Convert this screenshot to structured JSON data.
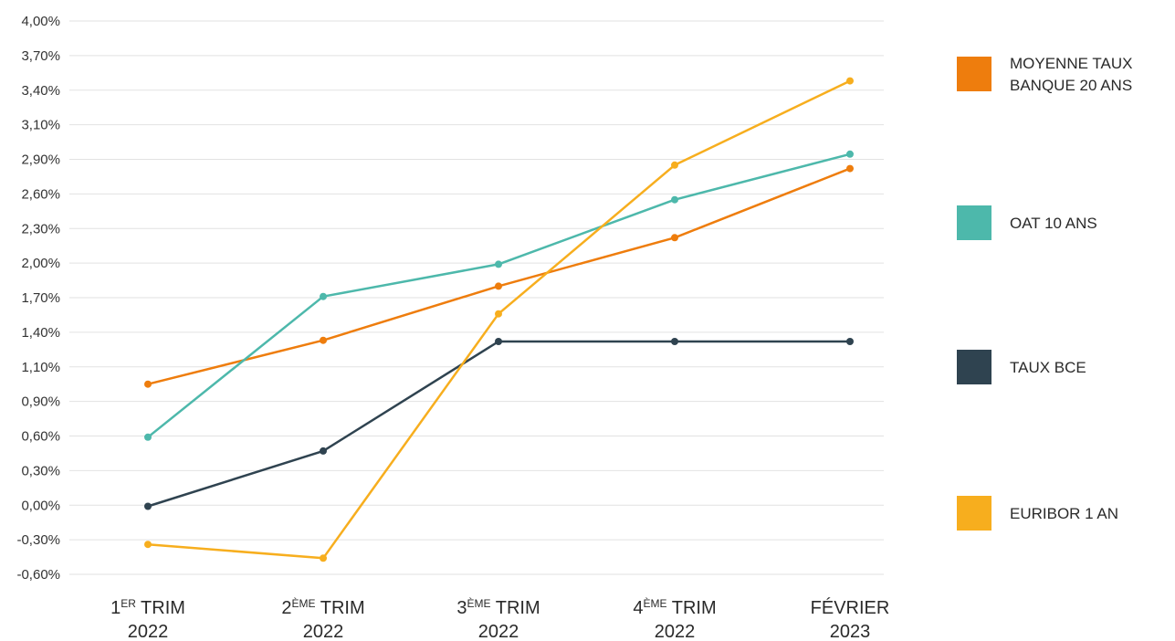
{
  "chart_data": {
    "type": "line",
    "categories": [
      {
        "num": "1",
        "sup": "ER",
        "word": "TRIM",
        "year": "2022"
      },
      {
        "num": "2",
        "sup": "ÈME",
        "word": "TRIM",
        "year": "2022"
      },
      {
        "num": "3",
        "sup": "ÈME",
        "word": "TRIM",
        "year": "2022"
      },
      {
        "num": "4",
        "sup": "ÈME",
        "word": "TRIM",
        "year": "2022"
      },
      {
        "num": "",
        "sup": "",
        "word": "FÉVRIER",
        "year": "2023"
      }
    ],
    "y_ticks": [
      {
        "value": -0.6,
        "label": "-0,60%"
      },
      {
        "value": -0.3,
        "label": "-0,30%"
      },
      {
        "value": 0.0,
        "label": "0,00%"
      },
      {
        "value": 0.3,
        "label": "0,30%"
      },
      {
        "value": 0.6,
        "label": "0,60%"
      },
      {
        "value": 0.9,
        "label": "0,90%"
      },
      {
        "value": 1.1,
        "label": "1,10%"
      },
      {
        "value": 1.4,
        "label": "1,40%"
      },
      {
        "value": 1.7,
        "label": "1,70%"
      },
      {
        "value": 2.0,
        "label": "2,00%"
      },
      {
        "value": 2.3,
        "label": "2,30%"
      },
      {
        "value": 2.6,
        "label": "2,60%"
      },
      {
        "value": 2.9,
        "label": "2,90%"
      },
      {
        "value": 3.1,
        "label": "3,10%"
      },
      {
        "value": 3.4,
        "label": "3,40%"
      },
      {
        "value": 3.7,
        "label": "3,70%"
      },
      {
        "value": 4.0,
        "label": "4,00%"
      }
    ],
    "ylim": [
      -0.6,
      4.0
    ],
    "grid": true,
    "legend_position": "right",
    "series": [
      {
        "name": "MOYENNE TAUX BANQUE 20 ANS",
        "color": "#ee7d0d",
        "values": [
          1.0,
          1.33,
          1.8,
          2.22,
          2.82
        ]
      },
      {
        "name": "OAT 10 ANS",
        "color": "#4db8ab",
        "values": [
          0.59,
          1.71,
          1.99,
          2.55,
          2.93
        ]
      },
      {
        "name": "TAUX BCE",
        "color": "#2f4350",
        "values": [
          -0.01,
          0.47,
          1.32,
          1.32,
          1.32
        ]
      },
      {
        "name": "EURIBOR 1 AN",
        "color": "#f7ae1e",
        "values": [
          -0.34,
          -0.46,
          1.56,
          2.85,
          3.48
        ]
      }
    ]
  },
  "legend": {
    "items": [
      {
        "label": "MOYENNE TAUX BANQUE 20 ANS",
        "color": "#ee7d0d"
      },
      {
        "label": "OAT 10 ANS",
        "color": "#4db8ab"
      },
      {
        "label": "TAUX BCE",
        "color": "#2f4350"
      },
      {
        "label": "EURIBOR 1 AN",
        "color": "#f7ae1e"
      }
    ]
  }
}
